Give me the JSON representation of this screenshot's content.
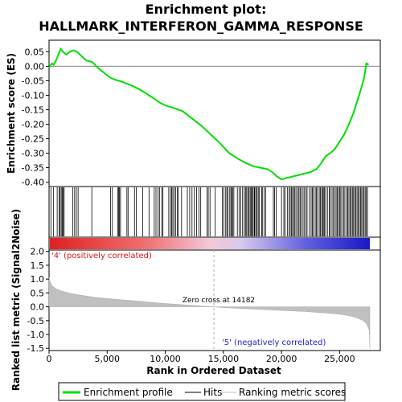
{
  "title_line1": "Enrichment plot:",
  "title_line2": "HALLMARK_INTERFERON_GAMMA_RESPONSE",
  "top_ylabel": "Enrichment score (ES)",
  "bottom_ylabel": "Ranked list metric (Signal2Noise)",
  "xlabel": "Rank in Ordered Dataset",
  "annotation_pos": "'4' (positively correlated)",
  "annotation_neg": "'5' (negatively correlated)",
  "zero_cross": "Zero cross at 14182",
  "legend": {
    "enrichment": "Enrichment profile",
    "hits": "Hits",
    "ranking": "Ranking metric scores"
  },
  "colors": {
    "enrichment_line": "#00dd00",
    "hits": "#000000",
    "ranking_fill": "#c0c0c0",
    "zero_line": "#808080",
    "pos_color": "#e01010",
    "neg_color": "#2020d0"
  },
  "chart_data": {
    "type": "line",
    "x_ticks": [
      "0",
      "5,000",
      "10,000",
      "15,000",
      "20,000",
      "25,000"
    ],
    "es_y_ticks": [
      "0.05",
      "0.00",
      "-0.05",
      "-0.10",
      "-0.15",
      "-0.20",
      "-0.25",
      "-0.30",
      "-0.35",
      "-0.40"
    ],
    "metric_y_ticks": [
      "2.0",
      "1.5",
      "1.0",
      "0.5",
      "0.0",
      "-0.5",
      "-1.0",
      "-1.5"
    ],
    "xlim": [
      0,
      28500
    ],
    "es_ylim": [
      -0.415,
      0.09
    ],
    "metric_ylim": [
      -1.58,
      2.05
    ],
    "zero_cross_rank": 14182,
    "n_genes": 27600,
    "enrichment_profile": {
      "x": [
        0,
        250,
        400,
        600,
        800,
        1000,
        1200,
        1500,
        1800,
        2100,
        2400,
        2800,
        3200,
        3700,
        4200,
        4800,
        5300,
        5800,
        6200,
        6700,
        7200,
        7800,
        8400,
        9000,
        9500,
        10000,
        10800,
        11500,
        12300,
        13100,
        13900,
        14700,
        15500,
        16300,
        17000,
        17600,
        18200,
        18800,
        19200,
        19600,
        20000,
        20500,
        21000,
        21500,
        22000,
        22500,
        23000,
        23400,
        23800,
        24200,
        24600,
        25000,
        25400,
        25800,
        26200,
        26600,
        26900,
        27100,
        27300,
        27500
      ],
      "y": [
        -0.005,
        0.01,
        0.005,
        0.02,
        0.04,
        0.06,
        0.05,
        0.04,
        0.05,
        0.055,
        0.05,
        0.035,
        0.02,
        0.015,
        -0.005,
        -0.025,
        -0.04,
        -0.048,
        -0.052,
        -0.06,
        -0.068,
        -0.08,
        -0.095,
        -0.11,
        -0.125,
        -0.135,
        -0.145,
        -0.155,
        -0.18,
        -0.205,
        -0.235,
        -0.265,
        -0.3,
        -0.32,
        -0.335,
        -0.345,
        -0.35,
        -0.355,
        -0.365,
        -0.38,
        -0.39,
        -0.385,
        -0.38,
        -0.375,
        -0.37,
        -0.365,
        -0.355,
        -0.335,
        -0.31,
        -0.3,
        -0.285,
        -0.26,
        -0.235,
        -0.2,
        -0.16,
        -0.11,
        -0.07,
        -0.04,
        0.01,
        0.005
      ]
    },
    "ranking_metric": {
      "x": [
        0,
        100,
        300,
        600,
        1000,
        1500,
        2000,
        3000,
        4000,
        5000,
        6000,
        7000,
        8000,
        9000,
        10000,
        11000,
        12000,
        13000,
        14182,
        15000,
        16000,
        17000,
        18000,
        19000,
        20000,
        21000,
        22000,
        23000,
        24000,
        25000,
        25500,
        26000,
        26500,
        26900,
        27200,
        27400,
        27550,
        27600
      ],
      "y": [
        1.05,
        0.9,
        0.75,
        0.65,
        0.58,
        0.52,
        0.47,
        0.4,
        0.34,
        0.3,
        0.26,
        0.23,
        0.19,
        0.15,
        0.12,
        0.09,
        0.06,
        0.03,
        0.0,
        -0.03,
        -0.05,
        -0.07,
        -0.09,
        -0.11,
        -0.13,
        -0.15,
        -0.17,
        -0.2,
        -0.23,
        -0.27,
        -0.3,
        -0.34,
        -0.4,
        -0.47,
        -0.56,
        -0.68,
        -0.85,
        -1.5
      ]
    },
    "hit_positions": [
      160,
      390,
      700,
      860,
      950,
      1050,
      1150,
      1210,
      1300,
      2050,
      2200,
      2350,
      2500,
      3680,
      5300,
      5450,
      5900,
      5980,
      6050,
      6150,
      6700,
      6800,
      7350,
      7500,
      8050,
      8600,
      9050,
      9200,
      9380,
      9500,
      9700,
      9800,
      10300,
      10450,
      10550,
      10650,
      10750,
      10900,
      11050,
      11100,
      11400,
      11900,
      12100,
      12300,
      12500,
      12700,
      12900,
      13050,
      13600,
      13700,
      13850,
      14300,
      14900,
      15050,
      15200,
      15300,
      15400,
      15550,
      15650,
      15700,
      15800,
      15900,
      16200,
      16350,
      16500,
      16650,
      16800,
      16900,
      17000,
      17100,
      17200,
      17300,
      17380,
      17450,
      17550,
      17650,
      17700,
      17800,
      17900,
      18000,
      18100,
      18300,
      18350,
      18500,
      18650,
      19300,
      19400,
      19550,
      20000,
      20200,
      20300,
      20500,
      20650,
      20750,
      20850,
      20950,
      21050,
      21150,
      21250,
      21400,
      21500,
      21600,
      21700,
      21850,
      21950,
      22100,
      22200,
      22400,
      22550,
      22650,
      22750,
      22900,
      23000,
      23100,
      23250,
      23350,
      23450,
      23550,
      23600,
      23700,
      23800,
      23950,
      24100,
      24200,
      24350,
      24450,
      24600,
      24700,
      24800,
      24900,
      25000,
      25100,
      25200,
      25350,
      25450,
      25600,
      25700,
      25800,
      25900,
      26000,
      26100,
      26200,
      26300,
      26400,
      26500,
      26600,
      26700,
      26800,
      26900,
      27000,
      27100,
      27200,
      27300,
      27400
    ]
  }
}
